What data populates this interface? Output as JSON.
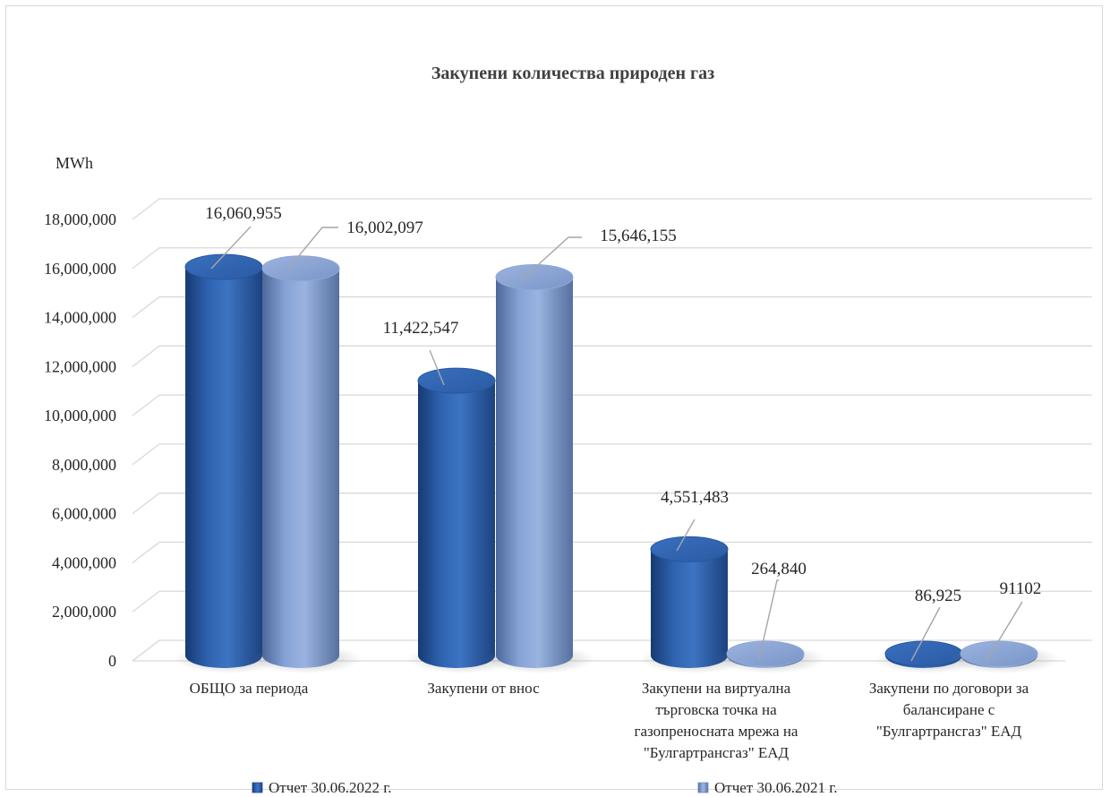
{
  "chart_data": {
    "type": "bar",
    "title": "Закупени количества природен газ",
    "ylabel": "MWh",
    "xlabel": "",
    "ylim": [
      0,
      18000000
    ],
    "ytick_step": 2000000,
    "ytick_labels": [
      "0",
      "2,000,000",
      "4,000,000",
      "6,000,000",
      "8,000,000",
      "10,000,000",
      "12,000,000",
      "14,000,000",
      "16,000,000",
      "18,000,000"
    ],
    "grid": true,
    "legend_position": "bottom",
    "categories": [
      [
        "ОБЩО за периода"
      ],
      [
        "Закупени от внос"
      ],
      [
        "Закупени на виртуална",
        "търговска точка на",
        "газопреносната мрежа на",
        "\"Булгартрансгаз\" ЕАД"
      ],
      [
        "Закупени по договори за",
        "балансиране с",
        "\"Булгартрансгаз\" ЕАД"
      ]
    ],
    "series": [
      {
        "name": "Отчет      30.06.2022 г.",
        "values": [
          16060955,
          11422547,
          4551483,
          86925
        ],
        "labels": [
          "16,060,955",
          "11,422,547",
          "4,551,483",
          "86,925"
        ],
        "color": "#2e5fa8"
      },
      {
        "name": "Отчет      30.06.2021 г.",
        "values": [
          16002097,
          15646155,
          264840,
          91102
        ],
        "labels": [
          "16,002,097",
          "15,646,155",
          "264,840",
          "91102"
        ],
        "color": "#7b97cc"
      }
    ]
  }
}
